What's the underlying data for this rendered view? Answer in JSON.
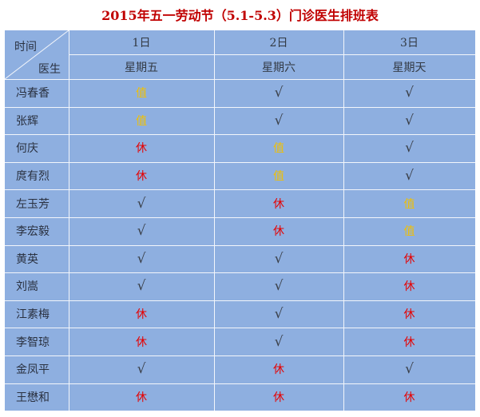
{
  "title": "2015年五一劳动节（5.1-5.3）门诊医生排班表",
  "corner": {
    "time_label": "时间",
    "doctor_label": "医生"
  },
  "days": [
    {
      "date": "1日",
      "weekday": "星期五"
    },
    {
      "date": "2日",
      "weekday": "星期六"
    },
    {
      "date": "3日",
      "weekday": "星期天"
    }
  ],
  "legend_colors": {
    "值": "#f2c000",
    "休": "#e60000",
    "√": "#3a3f48"
  },
  "rows": [
    {
      "name": "冯春香",
      "shifts": [
        "值",
        "√",
        "√"
      ]
    },
    {
      "name": "张辉",
      "shifts": [
        "值",
        "√",
        "√"
      ]
    },
    {
      "name": "何庆",
      "shifts": [
        "休",
        "值",
        "√"
      ]
    },
    {
      "name": "庹有烈",
      "shifts": [
        "休",
        "值",
        "√"
      ]
    },
    {
      "name": "左玉芳",
      "shifts": [
        "√",
        "休",
        "值"
      ]
    },
    {
      "name": "李宏毅",
      "shifts": [
        "√",
        "休",
        "值"
      ]
    },
    {
      "name": "黄英",
      "shifts": [
        "√",
        "√",
        "休"
      ]
    },
    {
      "name": "刘嵩",
      "shifts": [
        "√",
        "√",
        "休"
      ]
    },
    {
      "name": "江素梅",
      "shifts": [
        "休",
        "√",
        "休"
      ]
    },
    {
      "name": "李智琼",
      "shifts": [
        "休",
        "√",
        "休"
      ]
    },
    {
      "name": "金凤平",
      "shifts": [
        "√",
        "休",
        "√"
      ]
    },
    {
      "name": "王懋和",
      "shifts": [
        "休",
        "休",
        "休"
      ]
    }
  ]
}
